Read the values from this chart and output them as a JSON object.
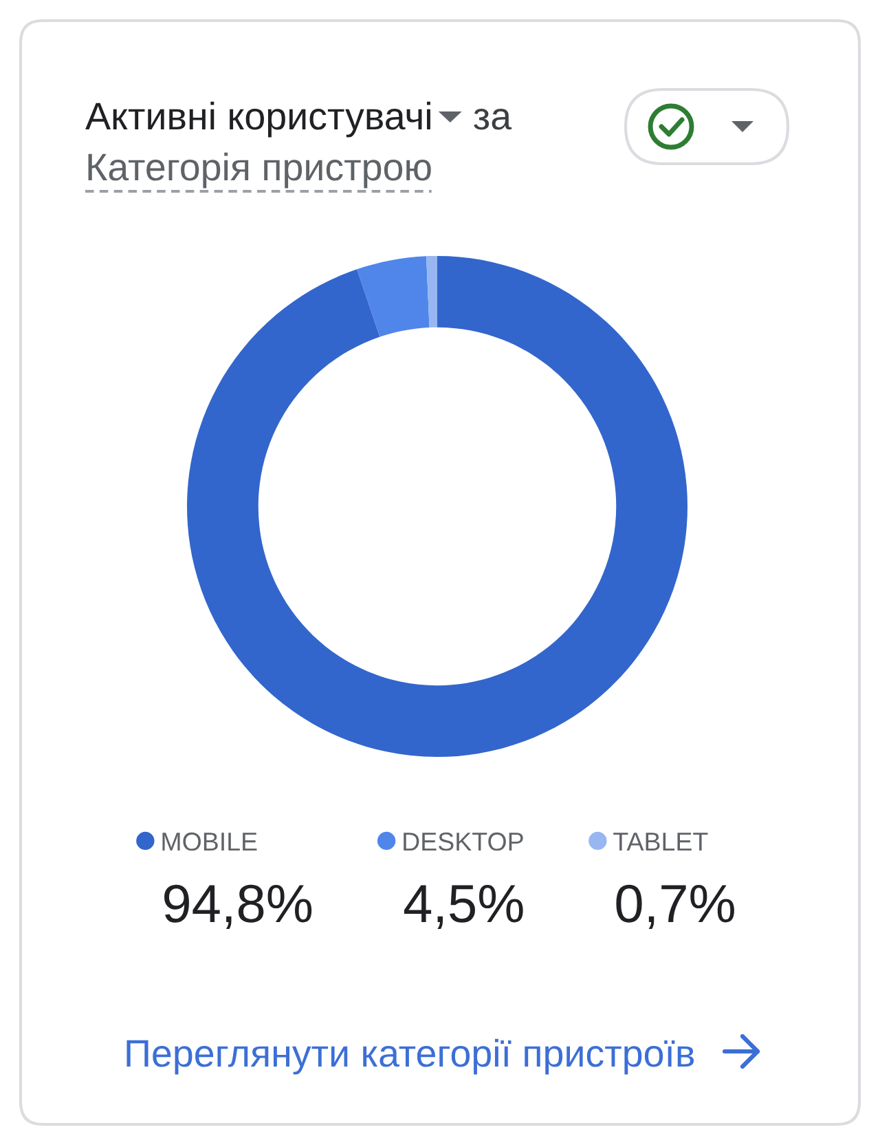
{
  "chart_data": {
    "type": "donut",
    "title": "Активні користувачі",
    "subtitle": "за Категорія пристрою",
    "categories": [
      "MOBILE",
      "DESKTOP",
      "TABLET"
    ],
    "values": [
      94.8,
      4.5,
      0.7
    ],
    "colors": [
      "#3366cc",
      "#5086ea",
      "#98b6f1"
    ],
    "value_labels": [
      "94,8%",
      "4,5%",
      "0,7%"
    ],
    "legend": "bottom",
    "annotations": [
      "Переглянути категорії пристроїв"
    ]
  }
}
